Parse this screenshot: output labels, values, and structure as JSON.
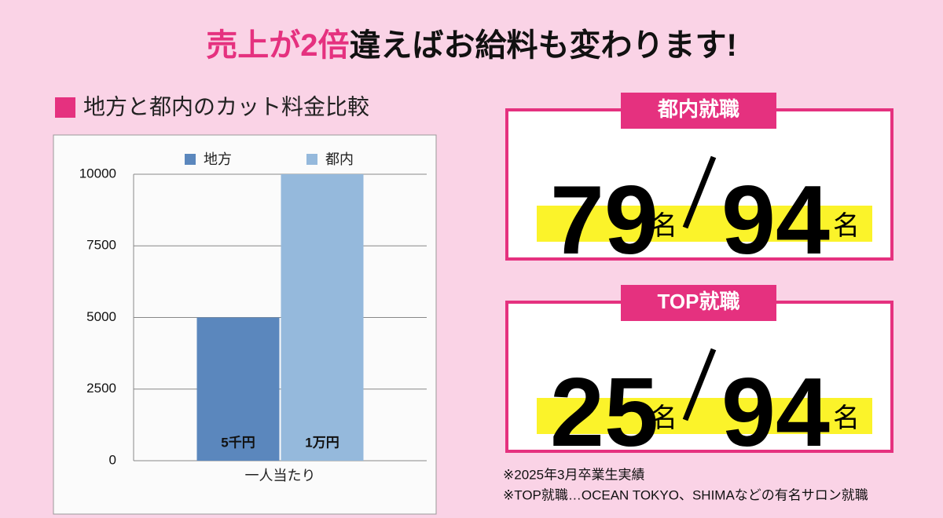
{
  "title_parts": [
    "売上が2倍",
    "違えばお給料も変わります!"
  ],
  "chart_data": {
    "type": "bar",
    "title": "地方と都内のカット料金比較",
    "categories": [
      "一人当たり"
    ],
    "series": [
      {
        "name": "地方",
        "color": "#5b87bd",
        "values": [
          5000
        ],
        "value_labels": [
          "5千円"
        ]
      },
      {
        "name": "都内",
        "color": "#95b9dc",
        "values": [
          10000
        ],
        "value_labels": [
          "1万円"
        ]
      }
    ],
    "ylim": [
      0,
      10000
    ],
    "yticks": [
      0,
      2500,
      5000,
      7500,
      10000
    ],
    "grid": true,
    "legend": "top"
  },
  "stats": [
    {
      "label": "都内就職",
      "count": 79,
      "unit": "名",
      "total": 94
    },
    {
      "label": "TOP就職",
      "count": 25,
      "unit": "名",
      "total": 94
    }
  ],
  "notes": [
    "※2025年3月卒業生実績",
    "※TOP就職…OCEAN TOKYO、SHIMAなどの有名サロン就職"
  ]
}
